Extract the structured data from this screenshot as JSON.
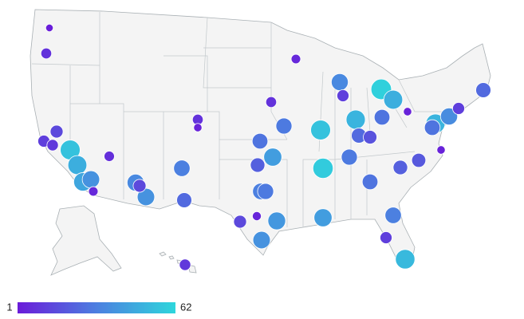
{
  "chart_data": {
    "type": "bubble-map",
    "values": [
      2,
      8,
      15,
      12,
      10,
      55,
      48,
      45,
      38,
      5,
      7,
      35,
      15,
      38,
      25,
      32,
      8,
      3,
      10,
      5,
      8,
      30,
      28,
      42,
      22,
      32,
      30,
      4,
      40,
      38,
      15,
      55,
      58,
      42,
      30,
      35,
      12,
      50,
      25,
      18,
      60,
      48,
      28,
      3,
      28,
      22,
      20,
      32,
      12,
      52,
      28,
      50,
      36,
      12,
      25,
      3
    ],
    "colorscale": {
      "min": 1,
      "max": 62,
      "colors": [
        "#6a1bd9",
        "#4c7fe0",
        "#2ed6dc"
      ]
    }
  }
}
